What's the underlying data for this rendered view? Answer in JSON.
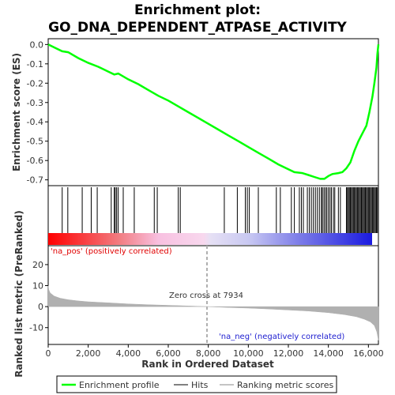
{
  "chart_data": {
    "type": "line",
    "title_line1": "Enrichment plot:",
    "title_line2": "GO_DNA_DEPENDENT_ATPASE_ACTIVITY",
    "es_ylabel": "Enrichment score (ES)",
    "metric_ylabel": "Ranked list metric (PreRanked)",
    "xlabel": "Rank in Ordered Dataset",
    "x_ticks": [
      "0",
      "2,000",
      "4,000",
      "6,000",
      "8,000",
      "10,000",
      "12,000",
      "14,000",
      "16,000"
    ],
    "x_tick_values": [
      0,
      2000,
      4000,
      6000,
      8000,
      10000,
      12000,
      14000,
      16000
    ],
    "xlim": [
      0,
      16500
    ],
    "es_ticks": [
      "0.0",
      "-0.1",
      "-0.2",
      "-0.3",
      "-0.4",
      "-0.5",
      "-0.6",
      "-0.7"
    ],
    "es_tick_values": [
      0.0,
      -0.1,
      -0.2,
      -0.3,
      -0.4,
      -0.5,
      -0.6,
      -0.7
    ],
    "es_ylim": [
      -0.73,
      0.03
    ],
    "metric_ticks": [
      "20",
      "10",
      "0",
      "-10"
    ],
    "metric_tick_values": [
      20,
      10,
      0,
      -10
    ],
    "metric_ylim": [
      -18,
      29
    ],
    "es_curve": [
      [
        0,
        0.0
      ],
      [
        300,
        -0.015
      ],
      [
        700,
        -0.035
      ],
      [
        1000,
        -0.04
      ],
      [
        1500,
        -0.07
      ],
      [
        2000,
        -0.095
      ],
      [
        2500,
        -0.115
      ],
      [
        3000,
        -0.14
      ],
      [
        3300,
        -0.155
      ],
      [
        3500,
        -0.15
      ],
      [
        4000,
        -0.18
      ],
      [
        4500,
        -0.205
      ],
      [
        5000,
        -0.235
      ],
      [
        5500,
        -0.265
      ],
      [
        6000,
        -0.29
      ],
      [
        6500,
        -0.32
      ],
      [
        7000,
        -0.35
      ],
      [
        7500,
        -0.38
      ],
      [
        8000,
        -0.41
      ],
      [
        8500,
        -0.44
      ],
      [
        9000,
        -0.47
      ],
      [
        9500,
        -0.5
      ],
      [
        10000,
        -0.53
      ],
      [
        10500,
        -0.56
      ],
      [
        11000,
        -0.59
      ],
      [
        11500,
        -0.62
      ],
      [
        12000,
        -0.645
      ],
      [
        12300,
        -0.66
      ],
      [
        12700,
        -0.665
      ],
      [
        13000,
        -0.675
      ],
      [
        13300,
        -0.685
      ],
      [
        13600,
        -0.695
      ],
      [
        13800,
        -0.695
      ],
      [
        14000,
        -0.68
      ],
      [
        14200,
        -0.67
      ],
      [
        14500,
        -0.665
      ],
      [
        14700,
        -0.66
      ],
      [
        14900,
        -0.64
      ],
      [
        15100,
        -0.61
      ],
      [
        15300,
        -0.55
      ],
      [
        15500,
        -0.5
      ],
      [
        15700,
        -0.46
      ],
      [
        15900,
        -0.42
      ],
      [
        16050,
        -0.35
      ],
      [
        16200,
        -0.27
      ],
      [
        16300,
        -0.2
      ],
      [
        16400,
        -0.12
      ],
      [
        16450,
        -0.05
      ],
      [
        16500,
        0.0
      ]
    ],
    "hits": [
      700,
      980,
      1700,
      2150,
      2450,
      3150,
      3300,
      3350,
      3420,
      3500,
      3750,
      4300,
      5300,
      5450,
      6500,
      6600,
      8800,
      9450,
      9850,
      9950,
      10050,
      10500,
      11400,
      11600,
      12150,
      12300,
      12550,
      12650,
      12750,
      12950,
      13050,
      13150,
      13250,
      13350,
      13450,
      13550,
      13650,
      13700,
      13780,
      13850,
      13920,
      14000,
      14080,
      14150,
      14250,
      14320,
      14500,
      14600,
      14900,
      14950,
      15000,
      15050,
      15100,
      15150,
      15200,
      15250,
      15300,
      15350,
      15400,
      15450,
      15500,
      15550,
      15600,
      15650,
      15700,
      15750,
      15800,
      15850,
      15900,
      15950,
      16000,
      16050,
      16100,
      16150,
      16200,
      16250,
      16300,
      16350,
      16400,
      16450
    ],
    "metric_curve": [
      [
        0,
        10
      ],
      [
        30,
        8
      ],
      [
        100,
        6.5
      ],
      [
        300,
        5
      ],
      [
        600,
        4
      ],
      [
        1000,
        3.3
      ],
      [
        1500,
        2.7
      ],
      [
        2000,
        2.3
      ],
      [
        3000,
        1.8
      ],
      [
        4000,
        1.3
      ],
      [
        5000,
        0.9
      ],
      [
        6000,
        0.6
      ],
      [
        7000,
        0.3
      ],
      [
        7934,
        0.0
      ],
      [
        9000,
        -0.4
      ],
      [
        10000,
        -0.7
      ],
      [
        11000,
        -1.1
      ],
      [
        12000,
        -1.6
      ],
      [
        13000,
        -2.1
      ],
      [
        14000,
        -2.9
      ],
      [
        14800,
        -3.8
      ],
      [
        15400,
        -4.8
      ],
      [
        15800,
        -6
      ],
      [
        16100,
        -7.3
      ],
      [
        16300,
        -9
      ],
      [
        16420,
        -12
      ],
      [
        16480,
        -15
      ],
      [
        16500,
        -16
      ]
    ],
    "zero_cross_rank": 7934,
    "zero_cross_label": "Zero cross at 7934",
    "pos_label": "'na_pos' (positively correlated)",
    "neg_label": "'na_neg' (negatively correlated)",
    "legend": [
      "Enrichment profile",
      "Hits",
      "Ranking metric scores"
    ],
    "colors": {
      "es_line": "#00ff00",
      "hit": "#000000",
      "metric_fill": "#b0b0b0",
      "pos_text": "#e00000",
      "neg_text": "#2020d0",
      "zero_line": "#b0b0b0"
    }
  }
}
